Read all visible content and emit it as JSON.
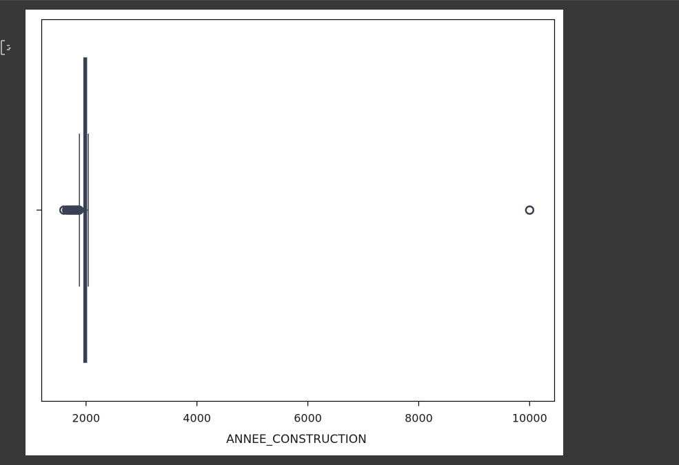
{
  "output": {
    "toggle_icon": "output-toggle-icon"
  },
  "colors": {
    "page_background": "#383838",
    "plot_background": "#ffffff",
    "box_color": "#3a4155",
    "axis_color": "#000000"
  },
  "chart_data": {
    "type": "boxplot",
    "orientation": "horizontal",
    "title": "",
    "xlabel": "ANNEE_CONSTRUCTION",
    "ylabel": "",
    "xlim": [
      1200,
      10450
    ],
    "xticks": [
      2000,
      4000,
      6000,
      8000,
      10000
    ],
    "xtick_labels": [
      "2000",
      "4000",
      "6000",
      "8000",
      "10000"
    ],
    "grid": false,
    "box": {
      "q1": 1960,
      "median": 1990,
      "q3": 2010,
      "whisker_low": 1880,
      "whisker_high": 2040
    },
    "outliers_low": [
      1600,
      1650,
      1680,
      1700,
      1720,
      1740,
      1760,
      1780,
      1800,
      1820,
      1840,
      1860,
      1875
    ],
    "outliers_high": [
      10000
    ]
  }
}
